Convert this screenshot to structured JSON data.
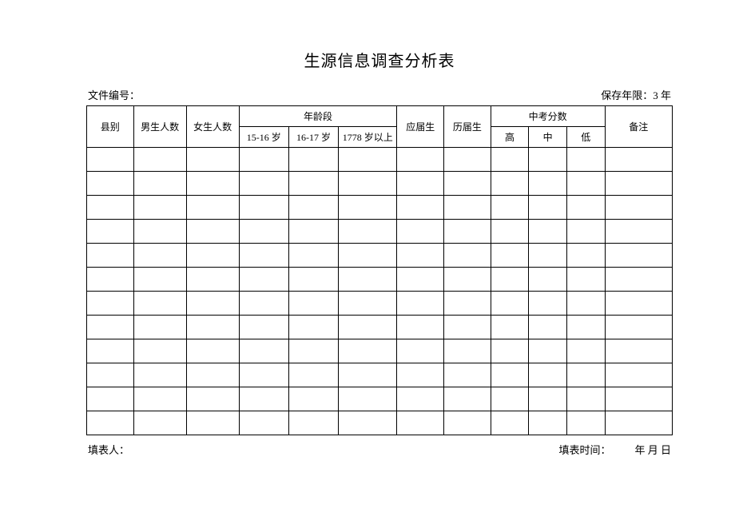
{
  "title": "生源信息调查分析表",
  "meta": {
    "file_no_label": "文件编号：",
    "retention_label": "保存年限：3 年"
  },
  "table": {
    "col_widths_pct": [
      8,
      9,
      9,
      8.5,
      8.5,
      10,
      8,
      8,
      6.5,
      6.5,
      6.5,
      11.5
    ],
    "header": {
      "county": "县别",
      "male_count": "男生人数",
      "female_count": "女生人数",
      "age_group": "年龄段",
      "age_15_16": "15-16 岁",
      "age_16_17": "16-17 岁",
      "age_1778_plus": "1778 岁以上",
      "fresh": "应届生",
      "past": "历届生",
      "exam_score": "中考分数",
      "high": "高",
      "mid": "中",
      "low": "低",
      "remark": "备注"
    },
    "body_row_count": 12
  },
  "footer": {
    "filler_label": "填表人：",
    "fill_time_label": "填表时间：",
    "date_text": "年 月 日"
  }
}
